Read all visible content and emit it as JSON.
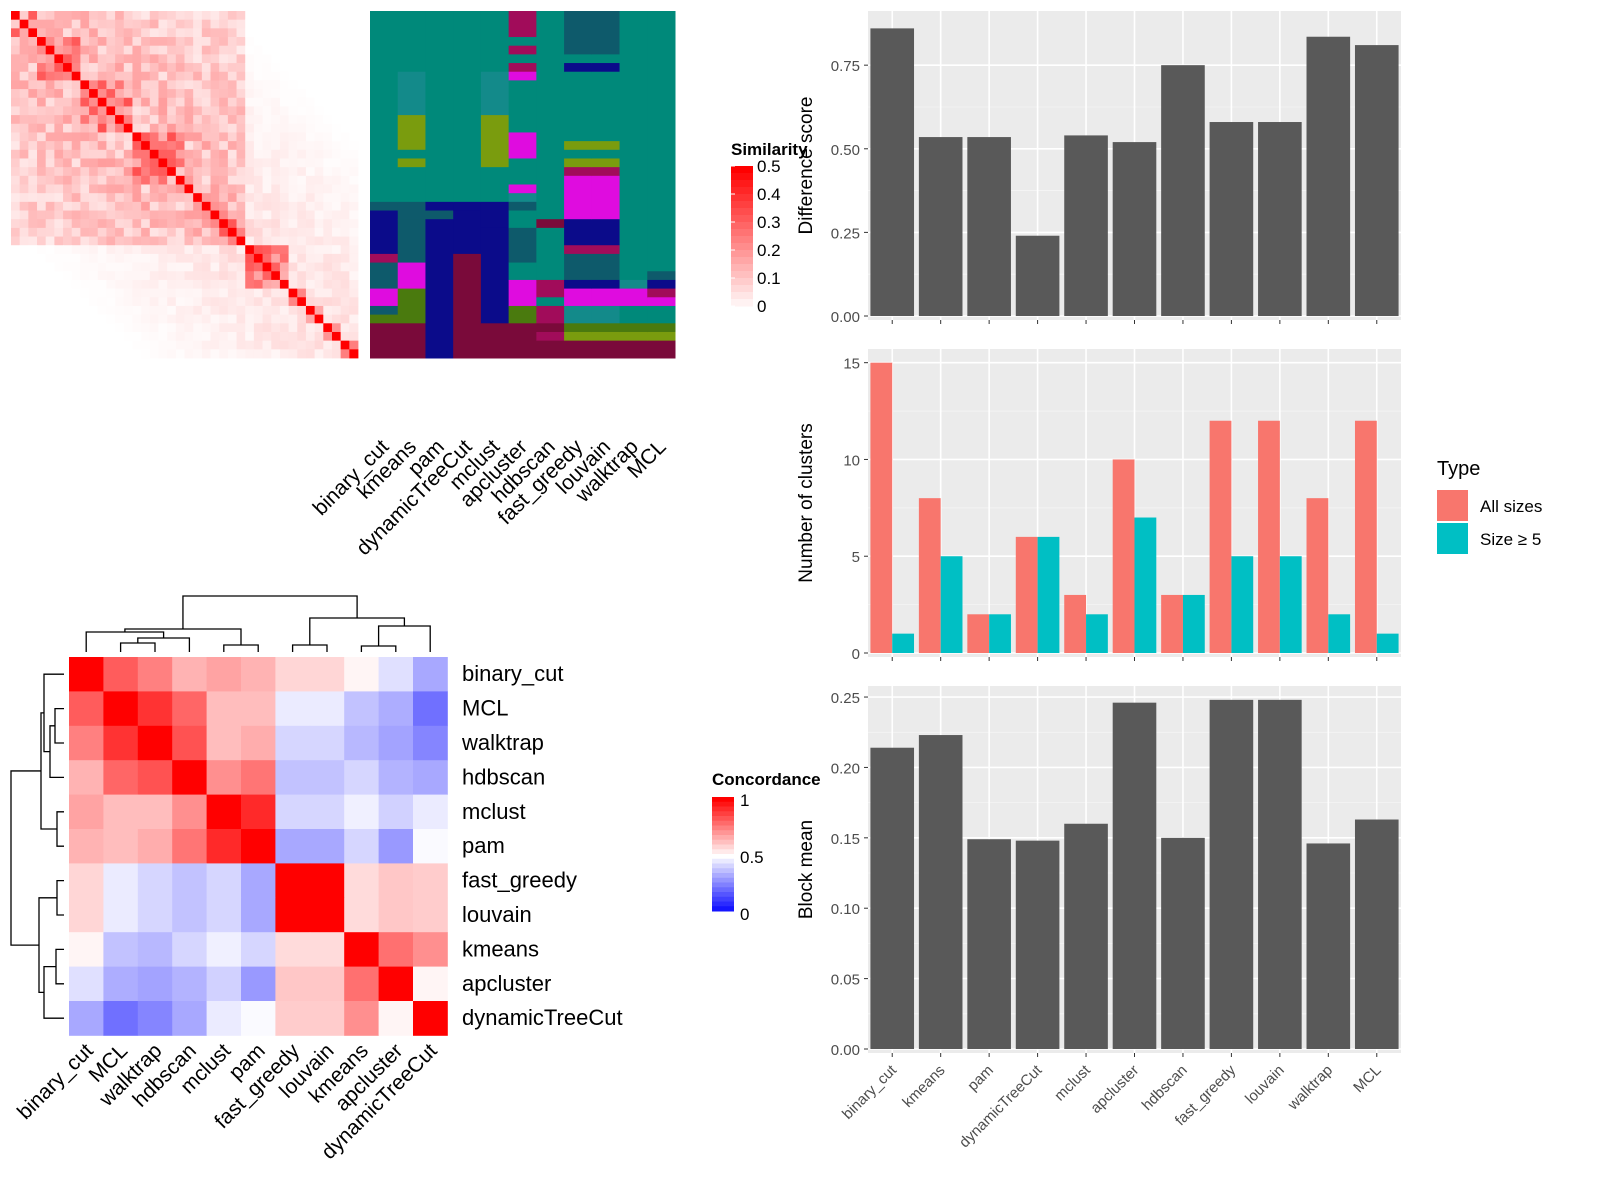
{
  "colors": {
    "similarity_high": "#ff0000",
    "concordance_high": "#ff0000",
    "concordance_mid": "#ffffff",
    "concordance_low": "#0000ff",
    "bar_dark": "#595959",
    "panel_bg": "#ebebeb",
    "type_all": "#f8766d",
    "type_size5": "#00bfc4",
    "class_palette": [
      "#00897a",
      "#0e5a6b",
      "#0b0b8a",
      "#7a0a3a",
      "#df0cdf",
      "#7a9c0e",
      "#4a7a0e",
      "#a10c5a",
      "#138a8a"
    ]
  },
  "chart_data": [
    {
      "type": "heatmap",
      "name": "similarity_matrix",
      "n": 40,
      "legend": {
        "title": "Similarity",
        "ticks": [
          "0",
          "0.1",
          "0.2",
          "0.3",
          "0.4",
          "0.5"
        ]
      }
    },
    {
      "type": "heatmap",
      "name": "cluster_assignments",
      "columns": [
        "binary_cut",
        "kmeans",
        "pam",
        "dynamicTreeCut",
        "mclust",
        "apcluster",
        "hdbscan",
        "fast_greedy",
        "louvain",
        "walktrap",
        "MCL"
      ]
    },
    {
      "type": "heatmap",
      "name": "concordance",
      "rows": [
        "binary_cut",
        "MCL",
        "walktrap",
        "hdbscan",
        "mclust",
        "pam",
        "fast_greedy",
        "louvain",
        "kmeans",
        "apcluster",
        "dynamicTreeCut"
      ],
      "columns": [
        "binary_cut",
        "MCL",
        "walktrap",
        "hdbscan",
        "mclust",
        "pam",
        "fast_greedy",
        "louvain",
        "kmeans",
        "apcluster",
        "dynamicTreeCut"
      ],
      "values": [
        [
          1.0,
          0.82,
          0.75,
          0.65,
          0.68,
          0.65,
          0.58,
          0.58,
          0.52,
          0.44,
          0.33
        ],
        [
          0.82,
          1.0,
          0.9,
          0.8,
          0.63,
          0.63,
          0.46,
          0.46,
          0.38,
          0.34,
          0.22
        ],
        [
          0.75,
          0.9,
          1.0,
          0.84,
          0.63,
          0.66,
          0.42,
          0.42,
          0.36,
          0.32,
          0.26
        ],
        [
          0.65,
          0.8,
          0.84,
          1.0,
          0.72,
          0.77,
          0.38,
          0.38,
          0.42,
          0.35,
          0.33
        ],
        [
          0.68,
          0.63,
          0.63,
          0.72,
          1.0,
          0.92,
          0.42,
          0.42,
          0.47,
          0.41,
          0.46
        ],
        [
          0.65,
          0.63,
          0.66,
          0.77,
          0.92,
          1.0,
          0.33,
          0.33,
          0.42,
          0.3,
          0.49
        ],
        [
          0.58,
          0.46,
          0.42,
          0.38,
          0.42,
          0.33,
          1.0,
          1.0,
          0.57,
          0.61,
          0.6
        ],
        [
          0.58,
          0.46,
          0.42,
          0.38,
          0.42,
          0.33,
          1.0,
          1.0,
          0.57,
          0.61,
          0.6
        ],
        [
          0.52,
          0.38,
          0.36,
          0.42,
          0.47,
          0.42,
          0.57,
          0.57,
          1.0,
          0.78,
          0.72
        ],
        [
          0.44,
          0.34,
          0.32,
          0.35,
          0.41,
          0.3,
          0.61,
          0.61,
          0.78,
          1.0,
          0.52
        ],
        [
          0.33,
          0.22,
          0.26,
          0.33,
          0.46,
          0.49,
          0.6,
          0.6,
          0.72,
          0.52,
          1.0
        ]
      ],
      "legend": {
        "title": "Concordance",
        "ticks": [
          "1",
          "0.5",
          "0"
        ]
      }
    },
    {
      "type": "bar",
      "name": "difference_score",
      "categories": [
        "binary_cut",
        "kmeans",
        "pam",
        "dynamicTreeCut",
        "mclust",
        "apcluster",
        "hdbscan",
        "fast_greedy",
        "louvain",
        "walktrap",
        "MCL"
      ],
      "values": [
        0.86,
        0.535,
        0.535,
        0.24,
        0.54,
        0.52,
        0.75,
        0.58,
        0.58,
        0.835,
        0.81
      ],
      "ylabel": "Difference score",
      "ylim": [
        0,
        0.9
      ],
      "ticks": [
        0,
        0.25,
        0.5,
        0.75
      ],
      "tick_labels": [
        "0.00",
        "0.25",
        "0.50",
        "0.75"
      ]
    },
    {
      "type": "bar",
      "name": "number_of_clusters",
      "categories": [
        "binary_cut",
        "kmeans",
        "pam",
        "dynamicTreeCut",
        "mclust",
        "apcluster",
        "hdbscan",
        "fast_greedy",
        "louvain",
        "walktrap",
        "MCL"
      ],
      "series": [
        {
          "name": "All sizes",
          "values": [
            15,
            8,
            2,
            6,
            3,
            10,
            3,
            12,
            12,
            8,
            12
          ]
        },
        {
          "name": "Size ≥ 5",
          "values": [
            1,
            5,
            2,
            6,
            2,
            7,
            3,
            5,
            5,
            2,
            1
          ]
        }
      ],
      "ylabel": "Number of clusters",
      "ylim": [
        0,
        15.5
      ],
      "ticks": [
        0,
        5,
        10,
        15
      ],
      "tick_labels": [
        "0",
        "5",
        "10",
        "15"
      ],
      "legend": {
        "title": "Type",
        "placement": "right"
      }
    },
    {
      "type": "bar",
      "name": "block_mean",
      "categories": [
        "binary_cut",
        "kmeans",
        "pam",
        "dynamicTreeCut",
        "mclust",
        "apcluster",
        "hdbscan",
        "fast_greedy",
        "louvain",
        "walktrap",
        "MCL"
      ],
      "values": [
        0.214,
        0.223,
        0.149,
        0.148,
        0.16,
        0.246,
        0.15,
        0.248,
        0.248,
        0.146,
        0.163
      ],
      "ylabel": "Block mean",
      "ylim": [
        0,
        0.255
      ],
      "ticks": [
        0,
        0.05,
        0.1,
        0.15,
        0.2,
        0.25
      ],
      "tick_labels": [
        "0.00",
        "0.05",
        "0.10",
        "0.15",
        "0.20",
        "0.25"
      ]
    }
  ]
}
